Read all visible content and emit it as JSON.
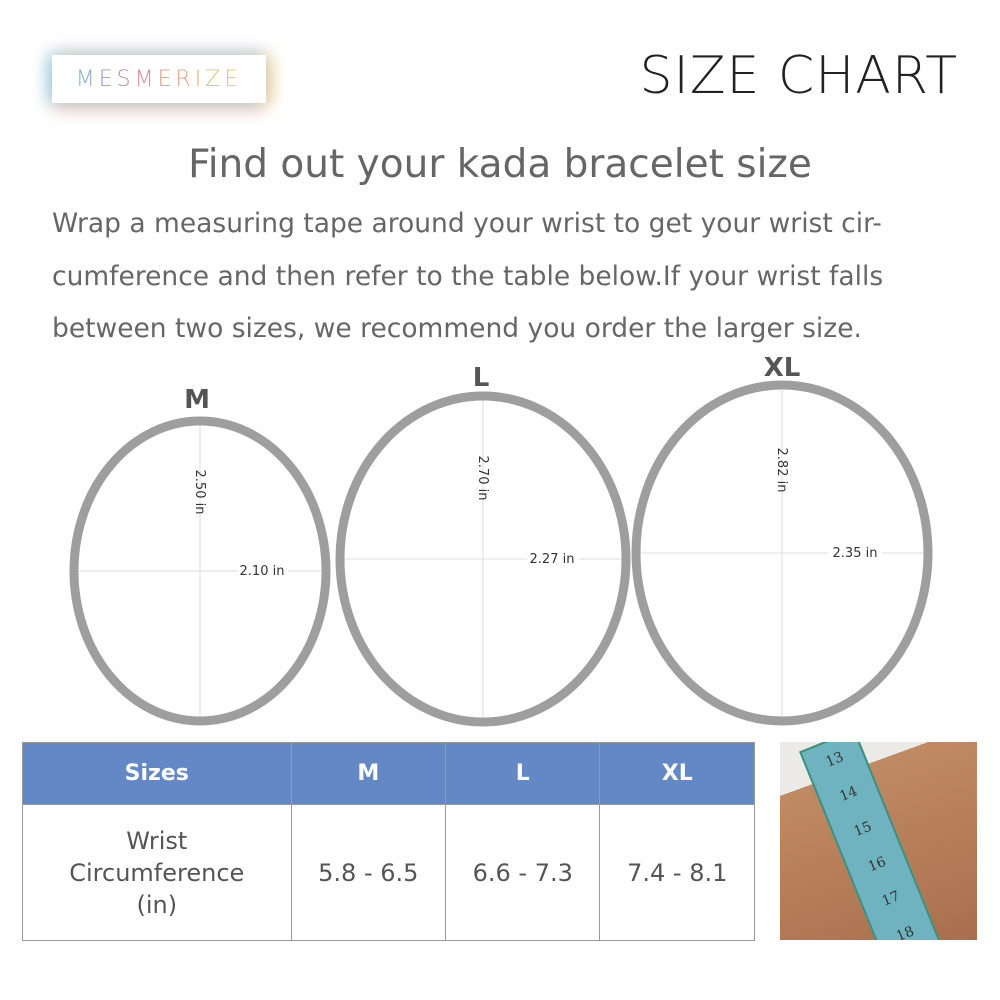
{
  "brand": {
    "logo_text": "MESMERIZE"
  },
  "header": {
    "title": "SIZE CHART"
  },
  "heading": "Find out your kada bracelet size",
  "description": "Wrap a measuring tape around your wrist to get your wrist cir-cumference and then refer to the table below.If your wrist falls between two sizes, we recommend you order the larger size.",
  "bracelets": [
    {
      "size": "M",
      "height": "2.50 in",
      "width": "2.10 in"
    },
    {
      "size": "L",
      "height": "2.70 in",
      "width": "2.27 in"
    },
    {
      "size": "XL",
      "height": "2.82 in",
      "width": "2.35 in"
    }
  ],
  "table": {
    "headers": [
      "Sizes",
      "M",
      "L",
      "XL"
    ],
    "row_label": [
      "Wrist",
      "Circumference",
      "(in)"
    ],
    "values": [
      "5.8 - 6.5",
      "6.6 - 7.3",
      "7.4 - 8.1"
    ]
  },
  "photo": {
    "tape_numbers": [
      "13",
      "14",
      "15",
      "16",
      "17",
      "18"
    ]
  },
  "colors": {
    "header_blue": "#6488c6",
    "ring_gray": "#9e9e9e"
  }
}
